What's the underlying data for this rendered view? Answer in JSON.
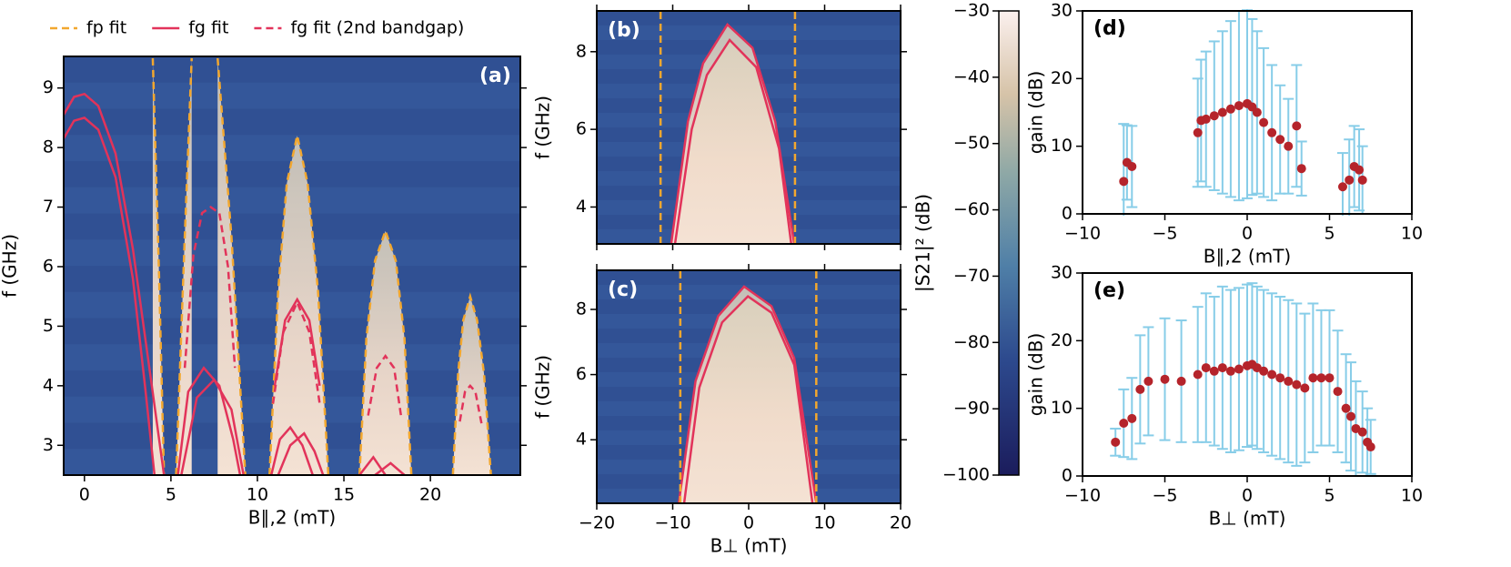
{
  "chart_data": [
    {
      "type": "heatmap",
      "panel_label": "(a)",
      "legend": "top",
      "xlabel": "B∥,2 (mT)",
      "ylabel": "f (GHz)",
      "xlim": [
        -1.2,
        25.2
      ],
      "ylim": [
        2.5,
        9.53
      ],
      "xticks": [
        0,
        5,
        10,
        15,
        20
      ],
      "yticks": [
        3,
        4,
        5,
        6,
        7,
        8,
        9
      ],
      "series": [
        {
          "name": "fp fit",
          "color": "#f2a72e",
          "dash": true,
          "x": [
            3.95,
            4.3,
            4.6,
            null,
            5.3,
            5.8,
            6.2,
            null,
            7.7,
            8.5,
            9.3,
            null,
            10.7,
            11.2,
            11.7,
            12.3,
            12.9,
            13.5,
            14.1,
            null,
            15.9,
            16.3,
            16.8,
            17.4,
            18.0,
            18.5,
            18.9,
            null,
            21.3,
            21.6,
            21.9,
            22.3,
            22.7,
            23.1,
            23.5
          ],
          "values": [
            9.5,
            6.0,
            2.5,
            null,
            2.5,
            6.5,
            9.5,
            null,
            9.5,
            6.5,
            2.5,
            null,
            2.5,
            5.6,
            7.4,
            8.2,
            7.4,
            5.6,
            2.5,
            null,
            2.5,
            4.8,
            6.1,
            6.6,
            6.1,
            4.8,
            2.5,
            null,
            2.5,
            4.2,
            5.1,
            5.5,
            5.1,
            4.2,
            2.5
          ]
        },
        {
          "name": "fg fit",
          "color": "#e2335a",
          "dash": false,
          "x": [
            -1.2,
            -0.6,
            0,
            0.8,
            1.8,
            2.8,
            3.5,
            4.05,
            null,
            -1.2,
            -0.6,
            0,
            0.8,
            1.8,
            2.8,
            3.8,
            4.6,
            null,
            5.4,
            6.0,
            6.9,
            7.8,
            8.6,
            9.0,
            null,
            5.6,
            6.5,
            7.5,
            8.5,
            9.2,
            null,
            10.8,
            11.3,
            11.9,
            12.6,
            13.2,
            null,
            11.2,
            11.9,
            12.7,
            13.3,
            13.8,
            null,
            11.0,
            11.6,
            12.3,
            13.0,
            13.6,
            null,
            15.9,
            16.7,
            17.4,
            null,
            16.8,
            17.7,
            18.5
          ],
          "values": [
            8.15,
            8.45,
            8.5,
            8.3,
            7.5,
            5.8,
            4.0,
            2.5,
            null,
            8.55,
            8.85,
            8.9,
            8.7,
            7.9,
            6.3,
            4.2,
            2.5,
            null,
            2.5,
            3.9,
            4.3,
            4.0,
            3.1,
            2.5,
            null,
            2.5,
            3.8,
            4.1,
            3.6,
            2.5,
            null,
            2.5,
            3.1,
            3.3,
            3.0,
            2.5,
            null,
            2.5,
            3.0,
            3.2,
            2.9,
            2.5,
            null,
            4.0,
            5.1,
            5.45,
            5.1,
            4.0,
            null,
            2.5,
            2.8,
            2.5,
            null,
            2.5,
            2.7,
            2.5
          ]
        },
        {
          "name": "fg fit (2nd bandgap)",
          "color": "#e2335a",
          "dash": true,
          "x": [
            5.8,
            6.3,
            6.8,
            7.3,
            7.8,
            8.3,
            8.7,
            null,
            10.9,
            11.5,
            12.3,
            13.0,
            13.6,
            null,
            16.4,
            16.9,
            17.4,
            17.9,
            18.3,
            null,
            21.7,
            22.0,
            22.3,
            22.6,
            23.0
          ],
          "values": [
            4.3,
            6.2,
            6.9,
            7.0,
            6.9,
            6.0,
            4.3,
            null,
            3.7,
            4.9,
            5.4,
            4.9,
            3.7,
            null,
            3.5,
            4.3,
            4.5,
            4.3,
            3.5,
            null,
            3.4,
            3.9,
            4.0,
            3.9,
            3.3
          ]
        }
      ]
    },
    {
      "type": "heatmap",
      "panel_label": "(b)",
      "xticklabels": false,
      "ylabel": "f (GHz)",
      "xlim": [
        -20,
        20
      ],
      "ylim": [
        3.05,
        9.05
      ],
      "xticks": [
        -20,
        -10,
        0,
        10,
        20
      ],
      "yticks": [
        4,
        6,
        8
      ],
      "series": [
        {
          "color": "#e2335a",
          "dash": false,
          "x": [
            -10.2,
            -8,
            -6,
            -2.8,
            0.5,
            3.5,
            6.0,
            null,
            -9.7,
            -7.5,
            -5.5,
            -2.5,
            1,
            4,
            5.6
          ],
          "values": [
            3.05,
            6.2,
            7.7,
            8.7,
            8.1,
            6.2,
            3.05,
            null,
            3.05,
            6.0,
            7.4,
            8.3,
            7.6,
            5.5,
            3.05
          ]
        },
        {
          "color": "#f2a72e",
          "dash": true,
          "x": [
            -11.6,
            -11.6,
            null,
            6.1,
            6.1
          ],
          "values": [
            3.05,
            9.05,
            null,
            3.05,
            9.05
          ]
        }
      ]
    },
    {
      "type": "heatmap",
      "panel_label": "(c)",
      "xlabel": "B⊥ (mT)",
      "ylabel": "f (GHz)",
      "xlim": [
        -20,
        20
      ],
      "ylim": [
        2.05,
        9.2
      ],
      "xticks": [
        {
          "value": -20,
          "label": "−20"
        },
        {
          "value": -10,
          "label": "−10"
        },
        0,
        10,
        20
      ],
      "yticks": [
        4,
        6,
        8
      ],
      "series": [
        {
          "color": "#e2335a",
          "dash": false,
          "x": [
            -9.2,
            -7,
            -4,
            -0.6,
            3,
            6,
            8.9,
            null,
            -8.5,
            -6.5,
            -3.5,
            -0.1,
            3,
            6,
            8.4
          ],
          "values": [
            2.05,
            5.8,
            7.8,
            8.7,
            8.1,
            6.5,
            2.05,
            null,
            2.05,
            5.6,
            7.6,
            8.4,
            7.9,
            6.3,
            2.05
          ]
        },
        {
          "color": "#f2a72e",
          "dash": true,
          "x": [
            -9.0,
            -9.0,
            null,
            8.9,
            8.9
          ],
          "values": [
            2.05,
            9.2,
            null,
            2.05,
            9.2
          ]
        }
      ]
    },
    {
      "type": "colorbar",
      "label": "|S21|² (dB)",
      "ylim": [
        -100,
        -30
      ],
      "yticks": [
        {
          "value": -100,
          "label": "−100"
        },
        {
          "value": -90,
          "label": "−90"
        },
        {
          "value": -80,
          "label": "−80"
        },
        {
          "value": -70,
          "label": "−70"
        },
        {
          "value": -60,
          "label": "−60"
        },
        {
          "value": -50,
          "label": "−50"
        },
        {
          "value": -40,
          "label": "−40"
        },
        {
          "value": -30,
          "label": "−30"
        }
      ]
    },
    {
      "type": "scatter",
      "panel_label": "(d)",
      "xlabel": "B∥,2 (mT)",
      "ylabel": "gain (dB)",
      "xlim": [
        -10,
        10
      ],
      "ylim": [
        0,
        30
      ],
      "xticks": [
        {
          "value": -10,
          "label": "−10"
        },
        {
          "value": -5,
          "label": "−5"
        },
        0,
        5,
        10
      ],
      "yticks": [
        0,
        10,
        20,
        30
      ],
      "color": "#b5242b",
      "error_color": "#87cde8",
      "x": [
        -7.5,
        -7.3,
        -7.0,
        -3.0,
        -2.8,
        -2.5,
        -2.0,
        -1.5,
        -1.0,
        -0.5,
        0,
        0.3,
        0.6,
        1.0,
        1.5,
        2.0,
        2.5,
        3.0,
        3.3,
        5.8,
        6.2,
        6.5,
        6.8,
        7.0
      ],
      "values": [
        4.8,
        7.6,
        7.0,
        12.0,
        13.8,
        14.0,
        14.5,
        15.0,
        15.5,
        16.0,
        16.3,
        15.8,
        15.0,
        13.5,
        12.0,
        11.0,
        10.0,
        13.0,
        6.7,
        4.0,
        5.0,
        7.0,
        6.5,
        5.0
      ],
      "errors": [
        8.5,
        5.5,
        6.0,
        8,
        9,
        10,
        11,
        12,
        13,
        14,
        14,
        13,
        12,
        11,
        10,
        8,
        7,
        9,
        4,
        5,
        6,
        6,
        6,
        5
      ]
    },
    {
      "type": "scatter",
      "panel_label": "(e)",
      "xlabel": "B⊥ (mT)",
      "ylabel": "gain (dB)",
      "xlim": [
        -10,
        10
      ],
      "ylim": [
        0,
        30
      ],
      "xticks": [
        {
          "value": -10,
          "label": "−10"
        },
        {
          "value": -5,
          "label": "−5"
        },
        0,
        5,
        10
      ],
      "yticks": [
        0,
        10,
        20,
        30
      ],
      "color": "#b5242b",
      "error_color": "#87cde8",
      "x": [
        -8,
        -7.5,
        -7,
        -6.5,
        -6,
        -5,
        -4,
        -3,
        -2.5,
        -2,
        -1.5,
        -1,
        -0.5,
        0,
        0.3,
        0.6,
        1,
        1.5,
        2,
        2.5,
        3,
        3.5,
        4,
        4.5,
        5,
        5.5,
        6,
        6.3,
        6.6,
        7,
        7.3,
        7.5
      ],
      "values": [
        5,
        7.8,
        8.5,
        12.8,
        14,
        14.3,
        14,
        15,
        16,
        15.5,
        16,
        15.5,
        15.8,
        16.3,
        16.5,
        16,
        15.5,
        15,
        14.5,
        14,
        13.5,
        13,
        14.5,
        14.5,
        14.5,
        12.5,
        10,
        8.8,
        7,
        6.5,
        5,
        4.3
      ],
      "errors": [
        2,
        5,
        6,
        8,
        8,
        9,
        9,
        10,
        11,
        11,
        12,
        12,
        12,
        12,
        12,
        12,
        12,
        12,
        12,
        12,
        12,
        11,
        11,
        10,
        10,
        9,
        8,
        8,
        7,
        6,
        5,
        4
      ]
    }
  ]
}
